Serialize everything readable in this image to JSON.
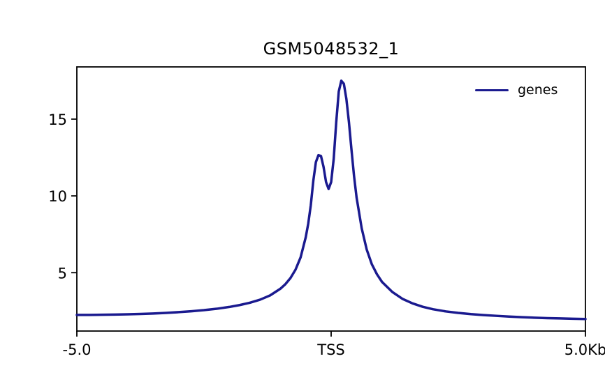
{
  "figure": {
    "title": "GSM5048532_1",
    "legend": {
      "label": "genes"
    }
  },
  "chart_data": {
    "type": "line",
    "title": "GSM5048532_1",
    "xlabel": "",
    "ylabel": "",
    "xlim": [
      -5,
      5
    ],
    "ylim": [
      1.2,
      18.4
    ],
    "x_tick_positions": [
      -5,
      0,
      5
    ],
    "x_tick_labels": [
      "-5.0",
      "TSS",
      "5.0Kb"
    ],
    "y_ticks": [
      5,
      10,
      15
    ],
    "grid": false,
    "legend_position": "upper-right",
    "series": [
      {
        "name": "genes",
        "color": "#1a1a8f",
        "x": [
          -5.0,
          -4.75,
          -4.5,
          -4.25,
          -4.0,
          -3.75,
          -3.5,
          -3.25,
          -3.0,
          -2.75,
          -2.5,
          -2.25,
          -2.0,
          -1.8,
          -1.6,
          -1.4,
          -1.2,
          -1.0,
          -0.9,
          -0.8,
          -0.7,
          -0.6,
          -0.5,
          -0.45,
          -0.4,
          -0.35,
          -0.3,
          -0.25,
          -0.2,
          -0.15,
          -0.1,
          -0.05,
          0.0,
          0.05,
          0.1,
          0.15,
          0.2,
          0.25,
          0.3,
          0.35,
          0.4,
          0.45,
          0.5,
          0.6,
          0.7,
          0.8,
          0.9,
          1.0,
          1.2,
          1.4,
          1.6,
          1.8,
          2.0,
          2.25,
          2.5,
          2.75,
          3.0,
          3.25,
          3.5,
          3.75,
          4.0,
          4.25,
          4.5,
          4.75,
          5.0
        ],
        "y": [
          2.25,
          2.25,
          2.26,
          2.27,
          2.29,
          2.31,
          2.34,
          2.38,
          2.43,
          2.49,
          2.56,
          2.65,
          2.77,
          2.89,
          3.04,
          3.24,
          3.52,
          3.95,
          4.25,
          4.65,
          5.2,
          6.0,
          7.3,
          8.2,
          9.4,
          11.0,
          12.2,
          12.65,
          12.6,
          11.9,
          10.9,
          10.45,
          10.9,
          12.4,
          14.8,
          16.8,
          17.5,
          17.3,
          16.3,
          14.8,
          13.0,
          11.3,
          9.9,
          7.9,
          6.5,
          5.55,
          4.9,
          4.4,
          3.75,
          3.3,
          3.0,
          2.78,
          2.62,
          2.48,
          2.38,
          2.3,
          2.24,
          2.19,
          2.14,
          2.1,
          2.07,
          2.04,
          2.02,
          2.0,
          1.98
        ]
      }
    ]
  }
}
